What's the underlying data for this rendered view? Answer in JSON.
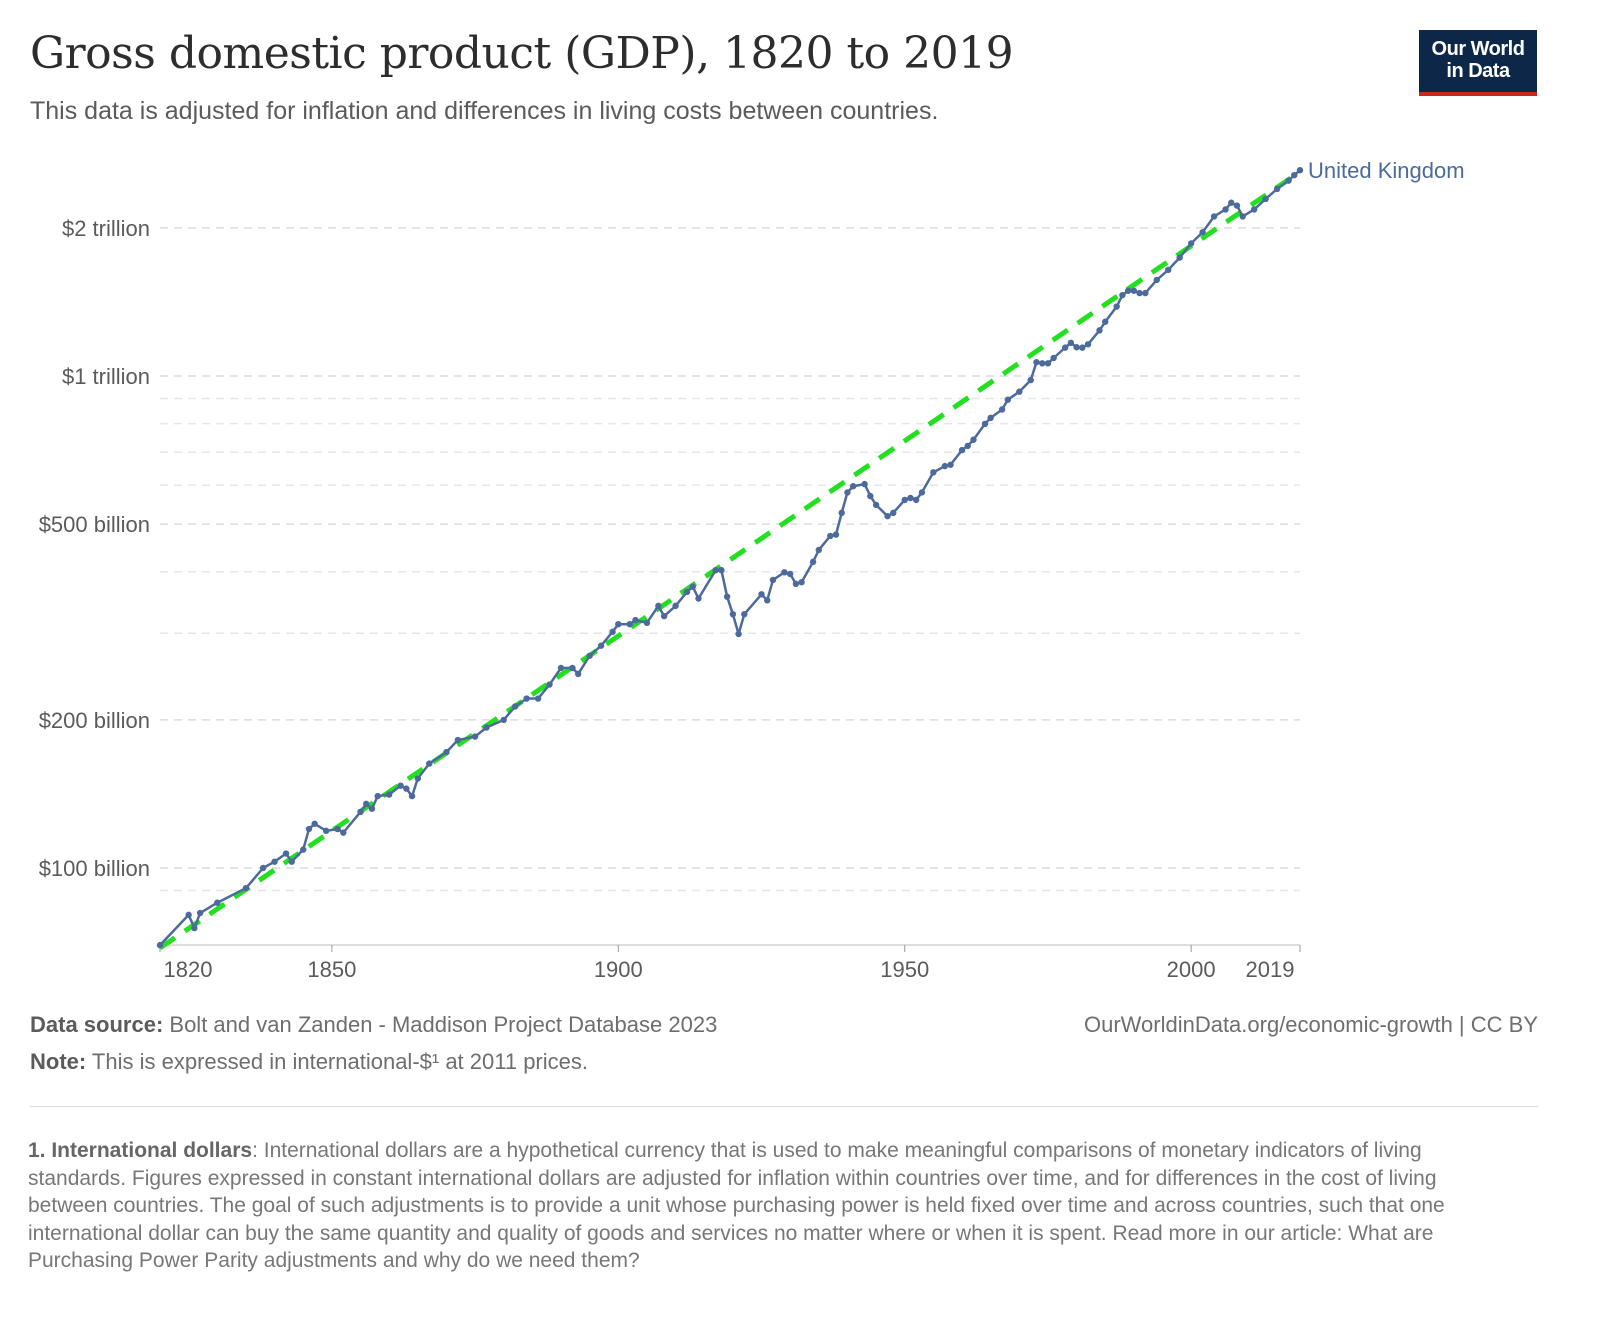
{
  "header": {
    "title": "Gross domestic product (GDP), 1820 to 2019",
    "subtitle": "This data is adjusted for inflation and differences in living costs between countries.",
    "logo": "Our World in Data",
    "logo_line1": "Our World",
    "logo_line2": "in Data"
  },
  "chart_data": {
    "type": "line",
    "title": "Gross domestic product (GDP), 1820 to 2019",
    "y_scale": "log",
    "ylim_billion": [
      66,
      2900
    ],
    "xlim": [
      1820,
      2019
    ],
    "grid": true,
    "legend_placement": "end-of-line label",
    "y_ticks": [
      {
        "value": 100,
        "label": "$100 billion"
      },
      {
        "value": 200,
        "label": "$200 billion"
      },
      {
        "value": 500,
        "label": "$500 billion"
      },
      {
        "value": 1000,
        "label": "$1 trillion"
      },
      {
        "value": 2000,
        "label": "$2 trillion"
      }
    ],
    "y_minor_gridlines": [
      90,
      300,
      400,
      600,
      700,
      800,
      900
    ],
    "x_ticks": [
      1820,
      1850,
      1900,
      1950,
      2000,
      2019
    ],
    "x_tick_labels": [
      "1820",
      "1850",
      "1900",
      "1950",
      "2000",
      "2019"
    ],
    "series": [
      {
        "name": "United Kingdom",
        "color": "#4c6a9c",
        "unit": "billion international-$ (2011 prices)",
        "x": [
          1820,
          1825,
          1826,
          1827,
          1830,
          1835,
          1838,
          1840,
          1842,
          1843,
          1845,
          1846,
          1847,
          1849,
          1851,
          1852,
          1855,
          1856,
          1857,
          1858,
          1860,
          1862,
          1863,
          1864,
          1865,
          1867,
          1870,
          1872,
          1875,
          1877,
          1880,
          1882,
          1884,
          1886,
          1888,
          1890,
          1892,
          1893,
          1895,
          1897,
          1899,
          1900,
          1902,
          1903,
          1905,
          1907,
          1908,
          1910,
          1912,
          1913,
          1914,
          1917,
          1918,
          1919,
          1920,
          1921,
          1922,
          1925,
          1926,
          1927,
          1929,
          1930,
          1931,
          1932,
          1934,
          1935,
          1937,
          1938,
          1939,
          1940,
          1941,
          1943,
          1944,
          1945,
          1947,
          1948,
          1950,
          1951,
          1952,
          1953,
          1955,
          1957,
          1958,
          1960,
          1961,
          1962,
          1964,
          1965,
          1967,
          1968,
          1970,
          1972,
          1973,
          1974,
          1975,
          1976,
          1978,
          1979,
          1980,
          1981,
          1982,
          1984,
          1985,
          1987,
          1988,
          1989,
          1990,
          1991,
          1992,
          1994,
          1996,
          1998,
          2000,
          2002,
          2004,
          2006,
          2007,
          2008,
          2009,
          2011,
          2013,
          2015,
          2017,
          2018,
          2019
        ],
        "y": [
          69.7,
          80.3,
          75.5,
          81,
          85,
          91,
          100,
          103,
          107,
          103,
          109,
          120,
          123,
          119,
          120,
          118,
          130,
          135,
          132,
          140,
          141,
          147,
          145,
          140,
          152,
          163,
          172,
          182,
          185,
          193,
          200,
          213,
          221,
          221,
          236,
          255,
          255,
          248,
          270,
          283,
          302,
          313,
          313,
          319,
          315,
          341,
          325,
          341,
          364,
          373,
          353,
          403,
          403,
          356,
          328,
          299,
          328,
          360,
          350,
          385,
          399,
          396,
          378,
          381,
          419,
          443,
          473,
          476,
          527,
          580,
          597,
          603,
          570,
          547,
          519,
          527,
          560,
          565,
          560,
          580,
          637,
          656,
          660,
          707,
          721,
          742,
          799,
          822,
          855,
          895,
          929,
          981,
          1067,
          1061,
          1061,
          1088,
          1142,
          1168,
          1144,
          1142,
          1160,
          1238,
          1289,
          1384,
          1460,
          1490,
          1490,
          1474,
          1474,
          1568,
          1643,
          1740,
          1860,
          1960,
          2110,
          2180,
          2250,
          2220,
          2110,
          2180,
          2290,
          2400,
          2495,
          2560,
          2620
        ]
      },
      {
        "type": "trend",
        "style": "dashed",
        "color": "#22e01f",
        "x": [
          1820,
          2019
        ],
        "y": [
          68.8,
          2600
        ]
      }
    ]
  },
  "footer": {
    "source_label": "Data source:",
    "source_text": " Bolt and van Zanden - Maddison Project Database 2023",
    "note_label": "Note:",
    "note_text": " This is expressed in international-$¹ at 2011 prices.",
    "credit": "OurWorldinData.org/economic-growth | CC BY",
    "footnote_label": "1. International dollars",
    "footnote_text": ": International dollars are a hypothetical currency that is used to make meaningful comparisons of monetary indicators of living standards. Figures expressed in constant international dollars are adjusted for inflation within countries over time, and for differences in the cost of living between countries. The goal of such adjustments is to provide a unit whose purchasing power is held fixed over time and across countries, such that one international dollar can buy the same quantity and quality of goods and services no matter where or when it is spent. Read more in our article: What are Purchasing Power Parity adjustments and why do we need them?"
  }
}
